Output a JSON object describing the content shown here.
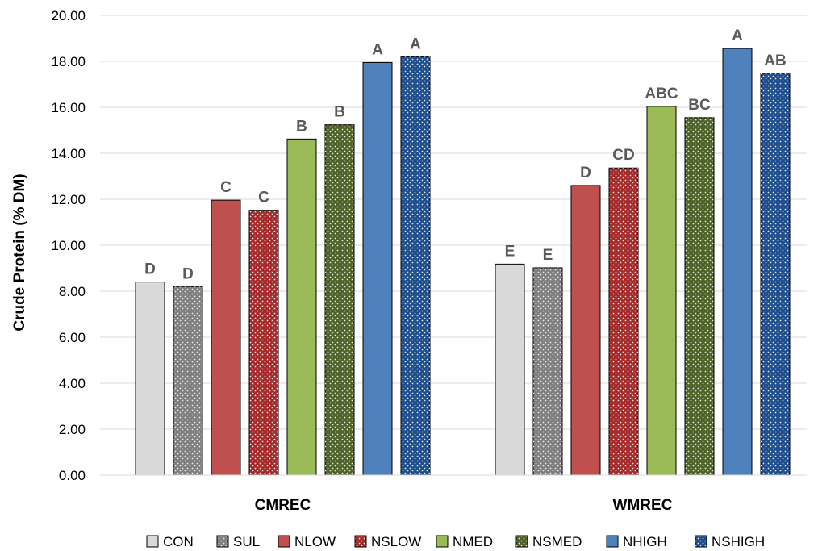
{
  "chart_data": {
    "type": "bar",
    "ylabel": "Crude Protein (% DM)",
    "ylim": [
      0,
      20
    ],
    "ytick_step": 2,
    "ytick_labels": [
      "0.00",
      "2.00",
      "4.00",
      "6.00",
      "8.00",
      "10.00",
      "12.00",
      "14.00",
      "16.00",
      "18.00",
      "20.00"
    ],
    "grid": true,
    "legend_position": "bottom",
    "categories": [
      "CMREC",
      "WMREC"
    ],
    "series": [
      {
        "name": "CON",
        "values": [
          8.4,
          9.18
        ],
        "letters": [
          "D",
          "E"
        ],
        "color": "#d9d9d9",
        "pattern": false
      },
      {
        "name": "SUL",
        "values": [
          8.2,
          9.02
        ],
        "letters": [
          "D",
          "E"
        ],
        "color": "#7f7f7f",
        "pattern": true
      },
      {
        "name": "NLOW",
        "values": [
          11.96,
          12.6
        ],
        "letters": [
          "C",
          "D"
        ],
        "color": "#c0504d",
        "pattern": false
      },
      {
        "name": "NSLOW",
        "values": [
          11.52,
          13.36
        ],
        "letters": [
          "C",
          "CD"
        ],
        "color": "#a52a2a",
        "pattern": true
      },
      {
        "name": "NMED",
        "values": [
          14.62,
          16.04
        ],
        "letters": [
          "B",
          "ABC"
        ],
        "color": "#9bbb59",
        "pattern": false
      },
      {
        "name": "NSMED",
        "values": [
          15.24,
          15.55
        ],
        "letters": [
          "B",
          "BC"
        ],
        "color": "#4f6228",
        "pattern": true
      },
      {
        "name": "NHIGH",
        "values": [
          17.95,
          18.56
        ],
        "letters": [
          "A",
          "A"
        ],
        "color": "#4f81bd",
        "pattern": false
      },
      {
        "name": "NSHIGH",
        "values": [
          18.2,
          17.48
        ],
        "letters": [
          "A",
          "AB"
        ],
        "color": "#1f4e8c",
        "pattern": true
      }
    ]
  }
}
